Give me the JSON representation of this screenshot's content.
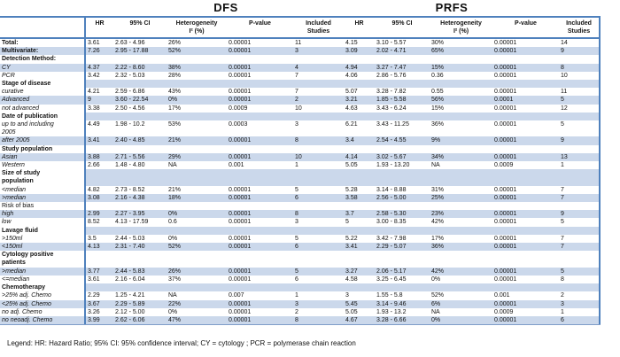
{
  "titles": {
    "dfs": "DFS",
    "prfs": "PRFS"
  },
  "columns": [
    "",
    "HR",
    "95% CI",
    "Heterogeneity\nI² (%)",
    "P-value",
    "Included\nStudies",
    "HR",
    "95% CI",
    "Heterogeneity\nI² (%)",
    "P-value",
    "Included\nStudies"
  ],
  "rows": [
    {
      "label": "Total:",
      "style": "bold",
      "shade": false,
      "section": false,
      "dfs": [
        "3.61",
        "2.63 - 4.96",
        "26%",
        "0.00001",
        "11"
      ],
      "prfs": [
        "4.15",
        "3.10 - 5.57",
        "30%",
        "0.00001",
        "14"
      ]
    },
    {
      "label": "Multivariate:",
      "style": "bold",
      "shade": true,
      "section": false,
      "dfs": [
        "7.26",
        "2.95 - 17.88",
        "52%",
        "0.00001",
        "3"
      ],
      "prfs": [
        "3.09",
        "2.02 - 4.71",
        "65%",
        "0.00001",
        "9"
      ]
    },
    {
      "label": "Detection Method:",
      "style": "bold",
      "shade": false,
      "section": true
    },
    {
      "label": "CY",
      "style": "italic",
      "shade": true,
      "section": false,
      "dfs": [
        "4.37",
        "2.22 - 8.60",
        "38%",
        "0.00001",
        "4"
      ],
      "prfs": [
        "4.94",
        "3.27 - 7.47",
        "15%",
        "0.00001",
        "8"
      ]
    },
    {
      "label": "PCR",
      "style": "italic",
      "shade": false,
      "section": false,
      "dfs": [
        "3.42",
        "2.32 - 5.03",
        "28%",
        "0.00001",
        "7"
      ],
      "prfs": [
        "4.06",
        "2.86 - 5.76",
        "0.36",
        "0.00001",
        "10"
      ]
    },
    {
      "label": "Stage of disease",
      "style": "bold",
      "shade": true,
      "section": true
    },
    {
      "label": "curative",
      "style": "italic",
      "shade": false,
      "section": false,
      "dfs": [
        "4.21",
        "2.59 - 6.86",
        "43%",
        "0.00001",
        "7"
      ],
      "prfs": [
        "5.07",
        "3.28 - 7.82",
        "0.55",
        "0.00001",
        "11"
      ]
    },
    {
      "label": "Advanced",
      "style": "italic",
      "shade": true,
      "section": false,
      "dfs": [
        "9",
        "3.60 - 22.54",
        "0%",
        "0.00001",
        "2"
      ],
      "prfs": [
        "3.21",
        "1.85 - 5.58",
        "56%",
        "0.0001",
        "5"
      ]
    },
    {
      "label": "not advanced",
      "style": "italic",
      "shade": false,
      "section": false,
      "dfs": [
        "3.38",
        "2.50 - 4.56",
        "17%",
        "0.0009",
        "10"
      ],
      "prfs": [
        "4.63",
        "3.43 - 6.24",
        "15%",
        "0.00001",
        "12"
      ]
    },
    {
      "label": "Date of publication",
      "style": "bold",
      "shade": true,
      "section": true
    },
    {
      "label": "up to and including\n2005",
      "style": "italic",
      "shade": false,
      "section": false,
      "dfs": [
        "4.49",
        "1.98 - 10.2",
        "53%",
        "0.0003",
        "3"
      ],
      "prfs": [
        "6.21",
        "3.43 - 11.25",
        "36%",
        "0.00001",
        "5"
      ]
    },
    {
      "label": "after 2005",
      "style": "italic",
      "shade": true,
      "section": false,
      "dfs": [
        "3.41",
        "2.40 - 4.85",
        "21%",
        "0.00001",
        "8"
      ],
      "prfs": [
        "3.4",
        "2.54 - 4.55",
        "9%",
        "0.00001",
        "9"
      ]
    },
    {
      "label": "Study population",
      "style": "bold",
      "shade": false,
      "section": true
    },
    {
      "label": "Asian",
      "style": "italic",
      "shade": true,
      "section": false,
      "dfs": [
        "3.88",
        "2.71 - 5.56",
        "29%",
        "0.00001",
        "10"
      ],
      "prfs": [
        "4.14",
        "3.02 - 5.67",
        "34%",
        "0.00001",
        "13"
      ]
    },
    {
      "label": "Western",
      "style": "italic",
      "shade": false,
      "section": false,
      "dfs": [
        "2.66",
        "1.48 - 4.80",
        "NA",
        "0.001",
        "1"
      ],
      "prfs": [
        "5.05",
        "1.93 - 13.20",
        "NA",
        "0.0009",
        "1"
      ]
    },
    {
      "label": "Size of study\npopulation",
      "style": "bold",
      "shade": true,
      "section": true
    },
    {
      "label": "<median",
      "style": "italic",
      "shade": false,
      "section": false,
      "dfs": [
        "4.82",
        "2.73 - 8.52",
        "21%",
        "0.00001",
        "5"
      ],
      "prfs": [
        "5.28",
        "3.14 - 8.88",
        "31%",
        "0.00001",
        "7"
      ]
    },
    {
      "label": ">median",
      "style": "italic",
      "shade": true,
      "section": false,
      "dfs": [
        "3.08",
        "2.16 - 4.38",
        "18%",
        "0.00001",
        "6"
      ],
      "prfs": [
        "3.58",
        "2.56 - 5.00",
        "25%",
        "0.00001",
        "7"
      ]
    },
    {
      "label": "Risk of bias",
      "style": "plain",
      "shade": false,
      "section": true
    },
    {
      "label": "high",
      "style": "italic",
      "shade": true,
      "section": false,
      "dfs": [
        "2.99",
        "2.27 - 3.95",
        "0%",
        "0.00001",
        "8"
      ],
      "prfs": [
        "3.7",
        "2.58 - 5.30",
        "23%",
        "0.00001",
        "9"
      ]
    },
    {
      "label": "low",
      "style": "italic",
      "shade": false,
      "section": false,
      "dfs": [
        "8.52",
        "4.13 - 17.59",
        "0.6",
        "0.00001",
        "3"
      ],
      "prfs": [
        "5",
        "3.00 - 8.35",
        "42%",
        "0.00001",
        "5"
      ]
    },
    {
      "label": "Lavage fluid",
      "style": "bold",
      "shade": true,
      "section": true
    },
    {
      "label": ">150ml",
      "style": "italic",
      "shade": false,
      "section": false,
      "dfs": [
        "3.5",
        "2.44 - 5.03",
        "0%",
        "0.00001",
        "5"
      ],
      "prfs": [
        "5.22",
        "3.42 - 7.98",
        "17%",
        "0.00001",
        "7"
      ]
    },
    {
      "label": "<150ml",
      "style": "italic",
      "shade": true,
      "section": false,
      "dfs": [
        "4.13",
        "2.31 - 7.40",
        "52%",
        "0.00001",
        "6"
      ],
      "prfs": [
        "3.41",
        "2.29 - 5.07",
        "36%",
        "0.00001",
        "7"
      ]
    },
    {
      "label": "Cytology positive\npatients",
      "style": "bold",
      "shade": false,
      "section": true
    },
    {
      "label": ">median",
      "style": "italic",
      "shade": true,
      "section": false,
      "dfs": [
        "3.77",
        "2.44 - 5.83",
        "26%",
        "0.00001",
        "5"
      ],
      "prfs": [
        "3.27",
        "2.06 - 5.17",
        "42%",
        "0.00001",
        "5"
      ]
    },
    {
      "label": "<=median",
      "style": "italic",
      "shade": false,
      "section": false,
      "dfs": [
        "3.61",
        "2.16 - 6.04",
        "37%",
        "0.00001",
        "6"
      ],
      "prfs": [
        "4.58",
        "3.25 - 6.45",
        "0%",
        "0.00001",
        "8"
      ]
    },
    {
      "label": "Chemotherapy",
      "style": "bold",
      "shade": true,
      "section": true
    },
    {
      "label": ">25% adj. Chemo",
      "style": "italic",
      "shade": false,
      "section": false,
      "dfs": [
        "2.29",
        "1.25 - 4.21",
        "NA",
        "0.007",
        "1"
      ],
      "prfs": [
        "3",
        "1.55 - 5.8",
        "52%",
        "0.001",
        "2"
      ]
    },
    {
      "label": "<25% adj. Chemo",
      "style": "italic",
      "shade": true,
      "section": false,
      "dfs": [
        "3.67",
        "2.29 - 5.89",
        "22%",
        "0.00001",
        "3"
      ],
      "prfs": [
        "5.45",
        "3.14 - 9.46",
        "6%",
        "0.00001",
        "3"
      ]
    },
    {
      "label": "no adj. Chemo",
      "style": "italic",
      "shade": false,
      "section": false,
      "dfs": [
        "3.26",
        "2.12 - 5.00",
        "0%",
        "0.00001",
        "2"
      ],
      "prfs": [
        "5.05",
        "1.93 - 13.2",
        "NA",
        "0.0009",
        "1"
      ]
    },
    {
      "label": "no neoadj. Chemo",
      "style": "italic",
      "shade": true,
      "section": false,
      "dfs": [
        "3.99",
        "2.62 - 6.06",
        "47%",
        "0.00001",
        "8"
      ],
      "prfs": [
        "4.67",
        "3.28 - 6.66",
        "0%",
        "0.00001",
        "6"
      ]
    }
  ],
  "legend": "Legend: HR: Hazard Ratio; 95% CI: 95% confidence interval; CY = cytology ; PCR = polymerase chain reaction",
  "colors": {
    "stripe": "#cbd8eb",
    "border": "#4f81bd"
  }
}
